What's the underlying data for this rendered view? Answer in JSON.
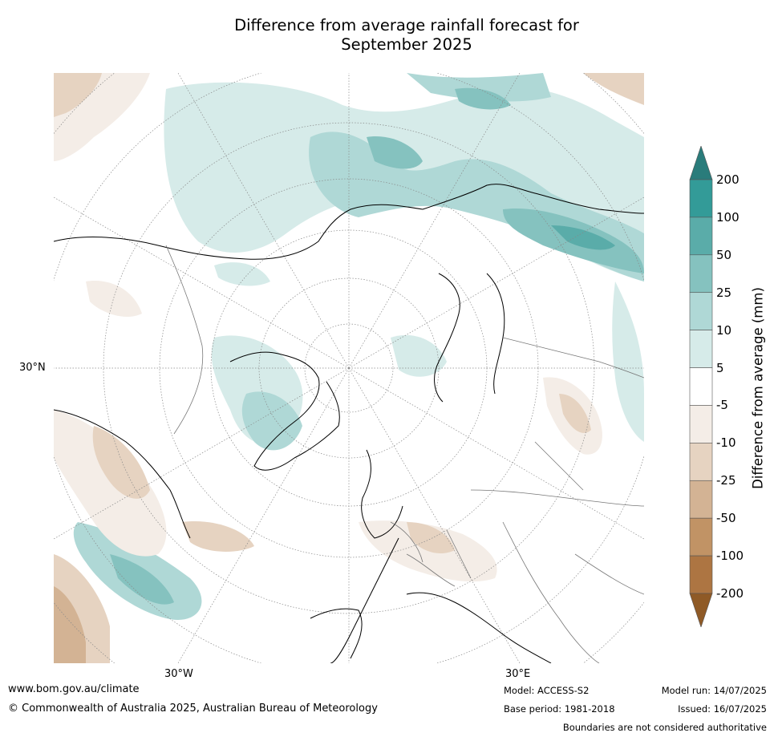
{
  "title_line1": "Difference from average rainfall forecast for",
  "title_line2": "September 2025",
  "map": {
    "projection": "north-polar-stereographic",
    "lat_labels": [
      {
        "text": "30°N"
      }
    ],
    "lon_labels": [
      {
        "text": "30°W"
      },
      {
        "text": "30°E"
      }
    ],
    "land_color": "#ffffff",
    "coastline_color": "#000000",
    "border_color": "#777777"
  },
  "colorbar": {
    "label": "Difference from average (mm)",
    "ticks": [
      "200",
      "100",
      "50",
      "25",
      "10",
      "5",
      "-5",
      "-10",
      "-25",
      "-50",
      "-100",
      "-200"
    ],
    "colors_top_to_bottom": [
      "#2a7c7b",
      "#339b98",
      "#5aaca9",
      "#85c2bf",
      "#afd8d6",
      "#d6ebe9",
      "#ffffff",
      "#f4ede7",
      "#e6d3c1",
      "#d3b394",
      "#c19365",
      "#ad7542",
      "#8f5a26"
    ]
  },
  "footer": {
    "website": "www.bom.gov.au/climate",
    "copyright": "© Commonwealth of Australia 2025, Australian Bureau of Meteorology",
    "model": "Model: ACCESS-S2",
    "base_period": "Base period: 1981-2018",
    "model_run": "Model run: 14/07/2025",
    "issued": "Issued: 16/07/2025",
    "disclaimer": "Boundaries are not considered authoritative"
  }
}
